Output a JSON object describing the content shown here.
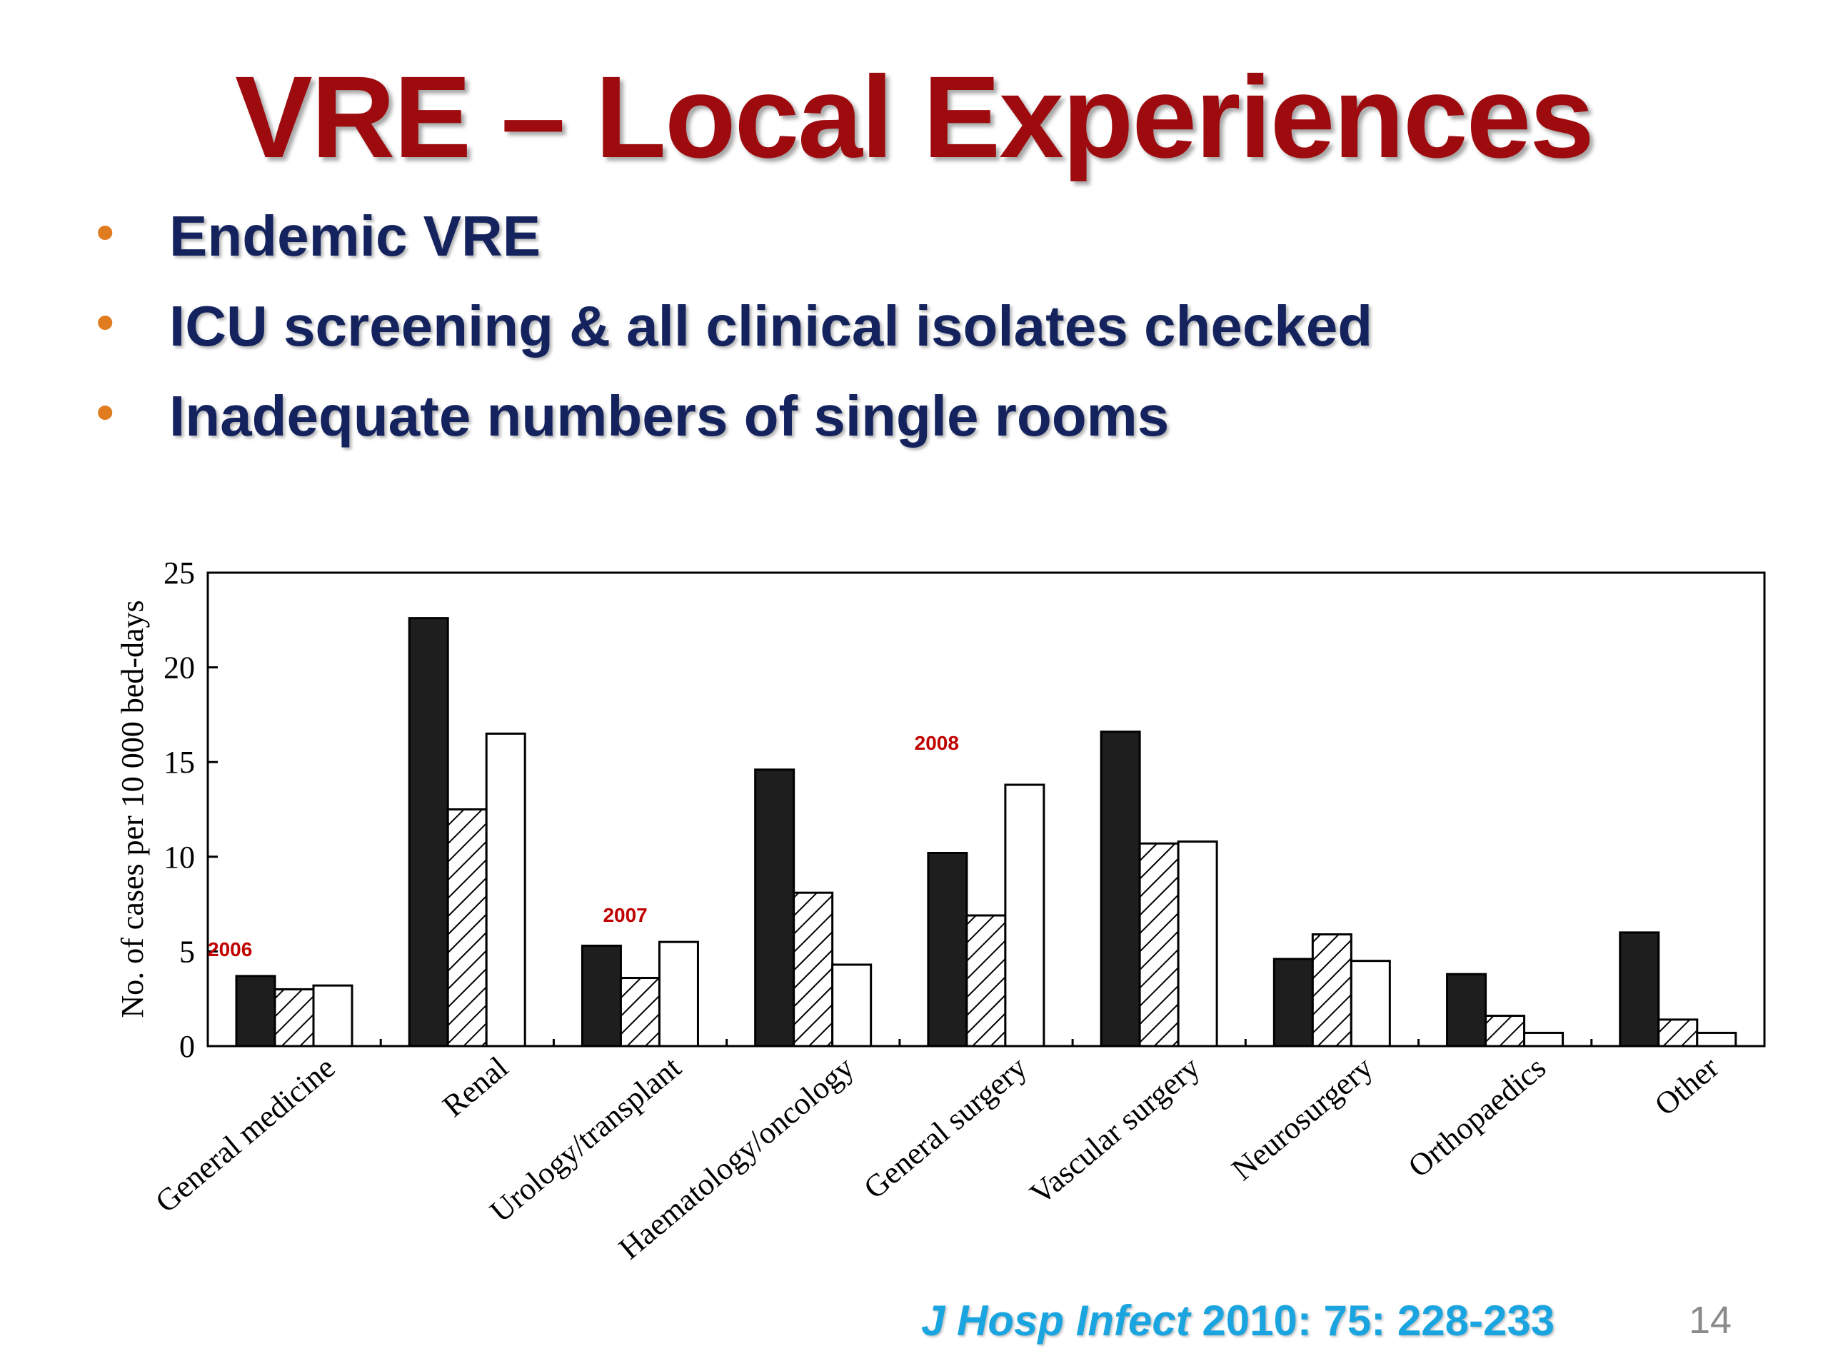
{
  "slide": {
    "title": "VRE – Local Experiences",
    "bullets": [
      "Endemic VRE",
      "ICU screening & all clinical isolates checked",
      "Inadequate numbers of single rooms"
    ],
    "citation": {
      "journal": "J Hosp Infect",
      "reference": " 2010: 75: 228-233"
    },
    "page_number": "14"
  },
  "chart_data": {
    "type": "bar",
    "title": "",
    "ylabel": "No. of cases per 10 000 bed-days",
    "xlabel": "",
    "ylim": [
      0,
      25
    ],
    "yticks": [
      0,
      5,
      10,
      15,
      20,
      25
    ],
    "categories": [
      "General medicine",
      "Renal",
      "Urology/transplant",
      "Haematology/oncology",
      "General surgery",
      "Vascular surgery",
      "Neurosurgery",
      "Orthopaedics",
      "Other"
    ],
    "series": [
      {
        "name": "2006",
        "fill": "solid",
        "values": [
          3.7,
          22.6,
          5.3,
          14.6,
          10.2,
          16.6,
          4.6,
          3.8,
          6.0
        ]
      },
      {
        "name": "2007",
        "fill": "hatched",
        "values": [
          3.0,
          12.5,
          3.6,
          8.1,
          6.9,
          10.7,
          5.9,
          1.6,
          1.4
        ]
      },
      {
        "name": "2008",
        "fill": "white",
        "values": [
          3.2,
          16.5,
          5.5,
          4.3,
          13.8,
          10.8,
          4.5,
          0.7,
          0.7
        ]
      }
    ],
    "series_label_color": "#c00000",
    "grid": false,
    "legend": "inline annotations"
  }
}
